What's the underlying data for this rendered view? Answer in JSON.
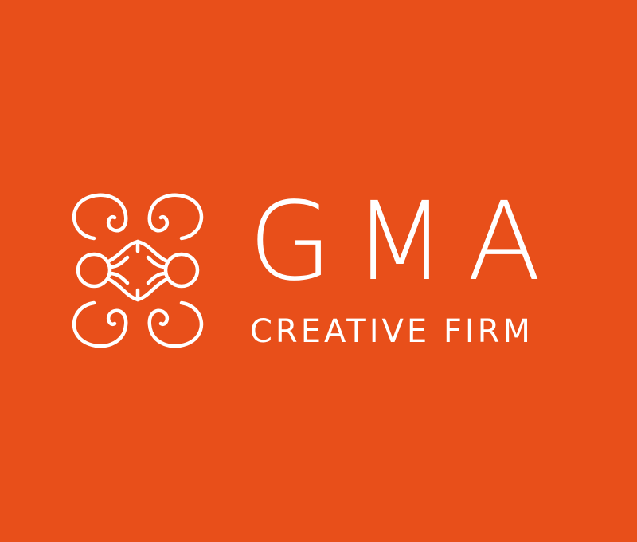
{
  "brand": {
    "name": "GMA",
    "tagline": "CREATIVE FIRM",
    "mark_icon": "ornamental-quatrefoil-icon"
  },
  "colors": {
    "background": "#E84F1A",
    "foreground": "#FFFFFF"
  }
}
